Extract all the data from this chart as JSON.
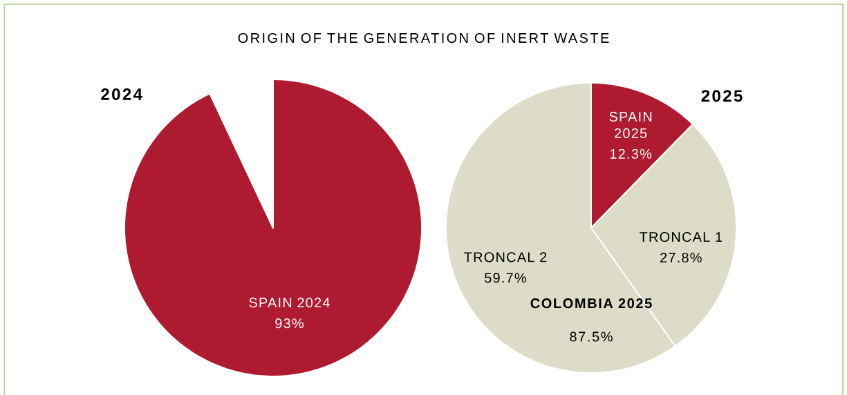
{
  "chart_data": [
    {
      "type": "pie",
      "title": "ORIGIN OF THE GENERATION OF INERT WASTE",
      "subtitle": "2024",
      "categories": [
        "SPAIN 2024",
        null
      ],
      "values": [
        93,
        7
      ],
      "colors": [
        "#ae1a2f",
        "#ffffff"
      ],
      "value_labels": [
        "93%",
        null
      ]
    },
    {
      "type": "pie",
      "subtitle": "2025",
      "categories": [
        "SPAIN 2025",
        "TRONCAL 1",
        "TRONCAL 2"
      ],
      "values": [
        12.3,
        27.8,
        59.7
      ],
      "colors": [
        "#ae1a2f",
        "#dcdcc8",
        "#dcdcc8"
      ],
      "value_labels": [
        "12.3%",
        "27.8%",
        "59.7%"
      ],
      "annotations": [
        "COLOMBIA 2025",
        "87.5%"
      ]
    }
  ]
}
